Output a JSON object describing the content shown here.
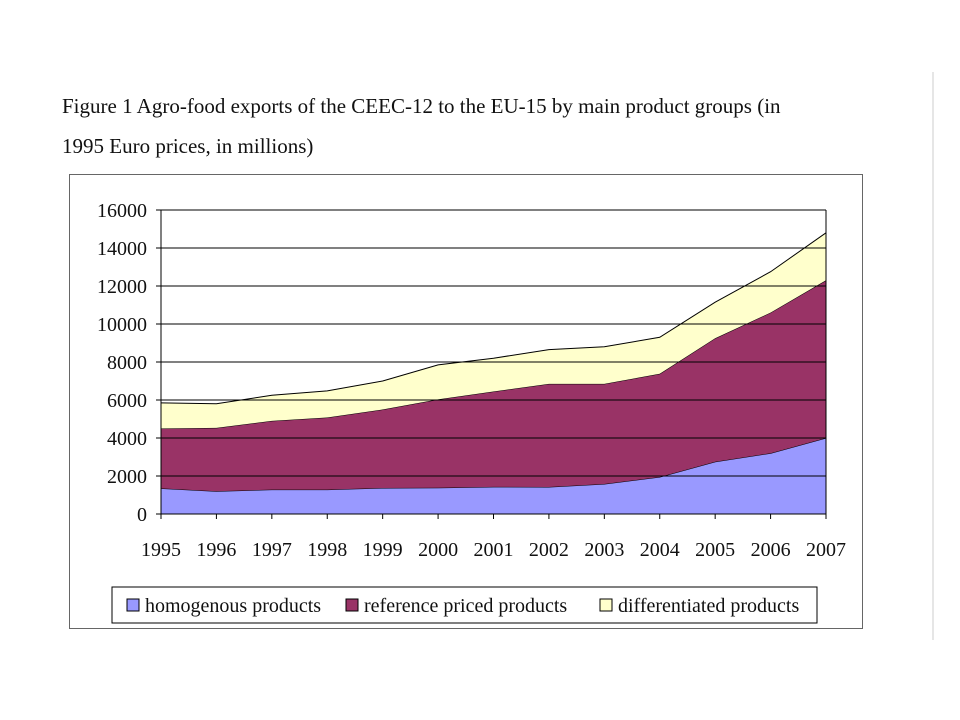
{
  "caption": {
    "line1": "Figure 1 Agro-food exports of the CEEC-12 to the EU-15 by main product groups (in",
    "line2": "1995 Euro prices, in millions)"
  },
  "colors": {
    "homogenous": "#9999ff",
    "reference": "#993366",
    "differentiated": "#ffffcc",
    "grid": "#000000"
  },
  "chart_data": {
    "type": "area",
    "stacked": true,
    "categories": [
      "1995",
      "1996",
      "1997",
      "1998",
      "1999",
      "2000",
      "2001",
      "2002",
      "2003",
      "2004",
      "2005",
      "2006",
      "2007"
    ],
    "series": [
      {
        "name": "homogenous products",
        "values": [
          1350,
          1200,
          1280,
          1280,
          1370,
          1380,
          1430,
          1420,
          1580,
          1950,
          2750,
          3200,
          4000
        ]
      },
      {
        "name": "reference priced products",
        "values": [
          3150,
          3330,
          3620,
          3800,
          4130,
          4650,
          5020,
          5430,
          5270,
          5430,
          6500,
          7400,
          8300
        ]
      },
      {
        "name": "differentiated products",
        "values": [
          1350,
          1270,
          1350,
          1400,
          1500,
          1820,
          1750,
          1800,
          1950,
          1920,
          1900,
          2150,
          2500
        ]
      }
    ],
    "ylim": [
      0,
      16000
    ],
    "yticks": [
      "0",
      "2000",
      "4000",
      "6000",
      "8000",
      "10000",
      "12000",
      "14000",
      "16000"
    ],
    "grid": true,
    "legend_position": "bottom"
  }
}
